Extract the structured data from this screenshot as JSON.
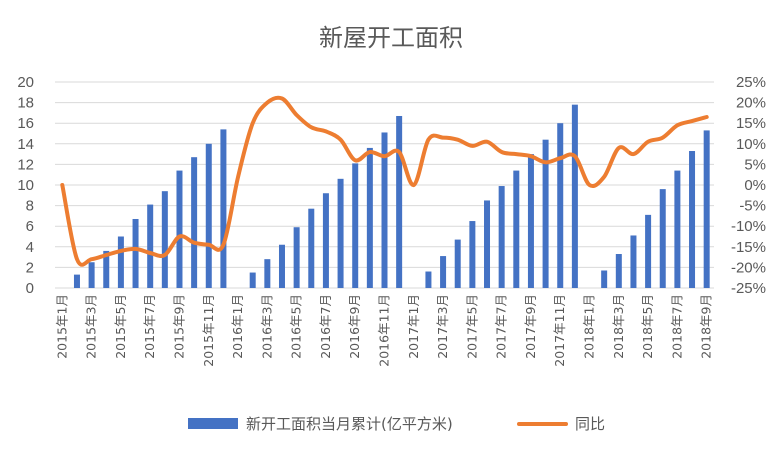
{
  "chart_data": {
    "type": "bar+line",
    "title": "新屋开工面积",
    "colors": {
      "bar": "#4472C4",
      "line": "#ED7D31",
      "grid": "#d9d9d9",
      "text": "#595959"
    },
    "left_axis": {
      "min": 0,
      "max": 20,
      "ticks": [
        "0",
        "2",
        "4",
        "6",
        "8",
        "10",
        "12",
        "14",
        "16",
        "18",
        "20"
      ]
    },
    "right_axis": {
      "min": -25,
      "max": 25,
      "ticks": [
        "-25%",
        "-20%",
        "-15%",
        "-10%",
        "-5%",
        "0%",
        "5%",
        "10%",
        "15%",
        "20%",
        "25%"
      ]
    },
    "grid": "horizontal",
    "legend_position": "bottom",
    "categories": [
      "2015年1月",
      "2015年2月",
      "2015年3月",
      "2015年4月",
      "2015年5月",
      "2015年6月",
      "2015年7月",
      "2015年8月",
      "2015年9月",
      "2015年10月",
      "2015年11月",
      "2015年12月",
      "2016年1月",
      "2016年2月",
      "2016年3月",
      "2016年4月",
      "2016年5月",
      "2016年6月",
      "2016年7月",
      "2016年8月",
      "2016年9月",
      "2016年10月",
      "2016年11月",
      "2016年12月",
      "2017年1月",
      "2017年2月",
      "2017年3月",
      "2017年4月",
      "2017年5月",
      "2017年6月",
      "2017年7月",
      "2017年8月",
      "2017年9月",
      "2017年10月",
      "2017年11月",
      "2017年12月",
      "2018年1月",
      "2018年2月",
      "2018年3月",
      "2018年4月",
      "2018年5月",
      "2018年6月",
      "2018年7月",
      "2018年8月",
      "2018年9月"
    ],
    "x_tick_labels": [
      "2015年1月",
      "",
      "2015年3月",
      "",
      "2015年5月",
      "",
      "2015年7月",
      "",
      "2015年9月",
      "",
      "2015年11月",
      "",
      "2016年1月",
      "",
      "2016年3月",
      "",
      "2016年5月",
      "",
      "2016年7月",
      "",
      "2016年9月",
      "",
      "2016年11月",
      "",
      "2017年1月",
      "",
      "2017年3月",
      "",
      "2017年5月",
      "",
      "2017年7月",
      "",
      "2017年9月",
      "",
      "2017年11月",
      "",
      "2018年1月",
      "",
      "2018年3月",
      "",
      "2018年5月",
      "",
      "2018年7月",
      "",
      "2018年9月"
    ],
    "series": [
      {
        "name": "新开工面积当月累计(亿平方米)",
        "type": "bar",
        "axis": "left",
        "values": [
          null,
          1.3,
          2.5,
          3.6,
          5.0,
          6.7,
          8.1,
          9.4,
          11.4,
          12.7,
          14.0,
          15.4,
          null,
          1.5,
          2.8,
          4.2,
          5.9,
          7.7,
          9.2,
          10.6,
          12.1,
          13.6,
          15.1,
          16.7,
          null,
          1.6,
          3.1,
          4.7,
          6.5,
          8.5,
          9.9,
          11.4,
          13.0,
          14.4,
          16.0,
          17.8,
          null,
          1.7,
          3.3,
          5.1,
          7.1,
          9.6,
          11.4,
          13.3,
          15.3
        ]
      },
      {
        "name": "同比",
        "type": "line",
        "axis": "right",
        "values": [
          0,
          -18,
          -18,
          -17,
          -16,
          -15.5,
          -16.5,
          -17,
          -12.5,
          -14,
          -14.5,
          -14.5,
          2,
          15,
          20,
          21,
          17,
          14,
          13,
          11,
          6,
          8,
          7,
          8,
          0,
          11,
          11.5,
          11,
          9.5,
          10.5,
          8,
          7.5,
          7,
          5.5,
          6.5,
          7,
          0,
          2,
          9,
          7.5,
          10.5,
          11.5,
          14.5,
          15.5,
          16.5
        ]
      }
    ]
  }
}
